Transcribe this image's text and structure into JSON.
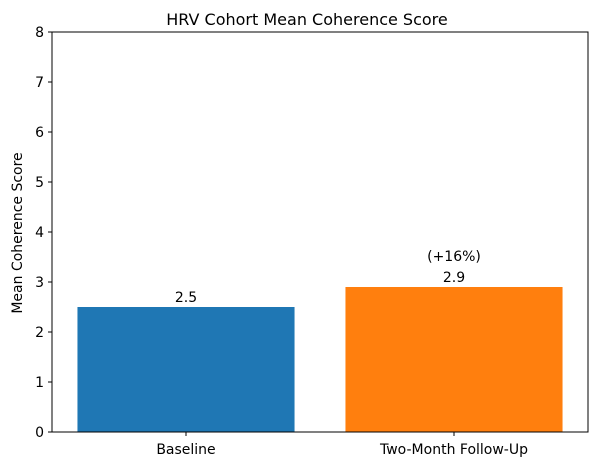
{
  "chart_data": {
    "type": "bar",
    "title": "HRV Cohort Mean Coherence Score",
    "xlabel": "",
    "ylabel": "Mean Coherence Score",
    "categories": [
      "Baseline",
      "Two-Month Follow-Up"
    ],
    "values": [
      2.5,
      2.9
    ],
    "bar_colors": [
      "#1f77b4",
      "#ff7f0e"
    ],
    "value_labels": [
      "2.5",
      "2.9"
    ],
    "annotations": [
      {
        "category": "Two-Month Follow-Up",
        "text": "(+16%)"
      }
    ],
    "ylim": [
      0,
      8
    ],
    "yticks": [
      0,
      1,
      2,
      3,
      4,
      5,
      6,
      7,
      8
    ],
    "grid": false,
    "legend": "none"
  }
}
